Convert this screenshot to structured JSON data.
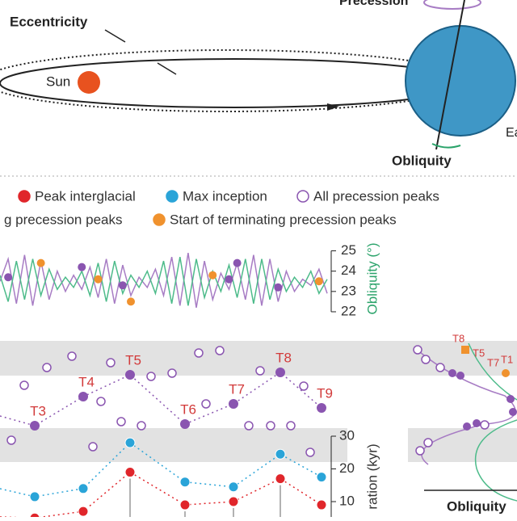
{
  "diagram": {
    "eccentricity": "Eccentricity",
    "sun": "Sun",
    "precession": "Precession",
    "obliquity": "Obliquity",
    "earth": "Ea"
  },
  "legend": [
    {
      "label": "Peak interglacial",
      "color": "#e0262b",
      "marker": "filled"
    },
    {
      "label": "Max inception",
      "color": "#2aa4d8",
      "marker": "filled"
    },
    {
      "label": "All precession peaks",
      "color": "#8a55b0",
      "marker": "open"
    },
    {
      "label": "g precession peaks",
      "color": "#8a55b0",
      "marker": "none"
    },
    {
      "label": "Start of terminating precession peaks",
      "color": "#f0922e",
      "marker": "filled"
    }
  ],
  "chart_data": [
    {
      "type": "line",
      "y_label": "Obliquity (°)",
      "xlim": [
        0,
        40
      ],
      "ylim": [
        21.8,
        25.3
      ],
      "yticks": [
        22,
        23,
        24,
        25
      ],
      "series": [
        {
          "color": "#a77cc4",
          "values": [
            23.5,
            24.6,
            22.4,
            24.8,
            22.3,
            24.5,
            22.6,
            24.0,
            23.0,
            23.8,
            23.1,
            24.2,
            22.7,
            24.6,
            22.4,
            24.3,
            22.8,
            23.7,
            23.2,
            24.1,
            22.8,
            24.7,
            22.3,
            24.9,
            22.2,
            24.5,
            22.6,
            23.9,
            23.1,
            24.4,
            22.6,
            24.8,
            22.3,
            24.6,
            22.5,
            24.0,
            23.0,
            23.6,
            23.3,
            24.1,
            22.9
          ]
        },
        {
          "color": "#4dbb8a",
          "values": [
            23.8,
            22.5,
            24.5,
            22.6,
            24.6,
            22.8,
            24.1,
            23.1,
            23.7,
            23.2,
            24.0,
            22.8,
            24.4,
            22.5,
            24.5,
            22.9,
            23.8,
            23.2,
            24.0,
            22.9,
            24.5,
            22.4,
            24.7,
            22.3,
            24.6,
            22.7,
            24.0,
            23.0,
            24.3,
            22.7,
            24.6,
            22.4,
            24.6,
            22.6,
            24.1,
            23.0,
            23.7,
            23.2,
            24.0,
            22.9,
            23.6
          ]
        }
      ],
      "points": [
        {
          "color": "#8a55b0",
          "x": [
            1,
            10,
            15,
            28,
            29,
            34
          ],
          "values": [
            23.7,
            24.2,
            23.3,
            23.6,
            24.4,
            23.2
          ]
        },
        {
          "color": "#f0922e",
          "x": [
            5,
            12,
            16,
            26,
            39
          ],
          "values": [
            24.4,
            23.6,
            22.5,
            23.8,
            23.5
          ]
        }
      ]
    },
    {
      "type": "dot-line",
      "y_label": "ration (kyr)",
      "ylim": [
        0,
        30.5
      ],
      "yticks": [
        10,
        20,
        30
      ],
      "categories": [
        "T3",
        "T4",
        "T5",
        "T6",
        "T7",
        "T8",
        "T9"
      ],
      "series": [
        {
          "color": "#2aa4d8",
          "values": [
            11.5,
            14,
            28,
            16,
            14.5,
            24.5,
            17.5
          ]
        },
        {
          "color": "#e0262b",
          "values": [
            5,
            7,
            19,
            9,
            10,
            17,
            9
          ]
        }
      ]
    },
    {
      "type": "profile",
      "x_label": "Obliquity",
      "labels": [
        "T8",
        "T5",
        "T7",
        "T1"
      ]
    }
  ]
}
